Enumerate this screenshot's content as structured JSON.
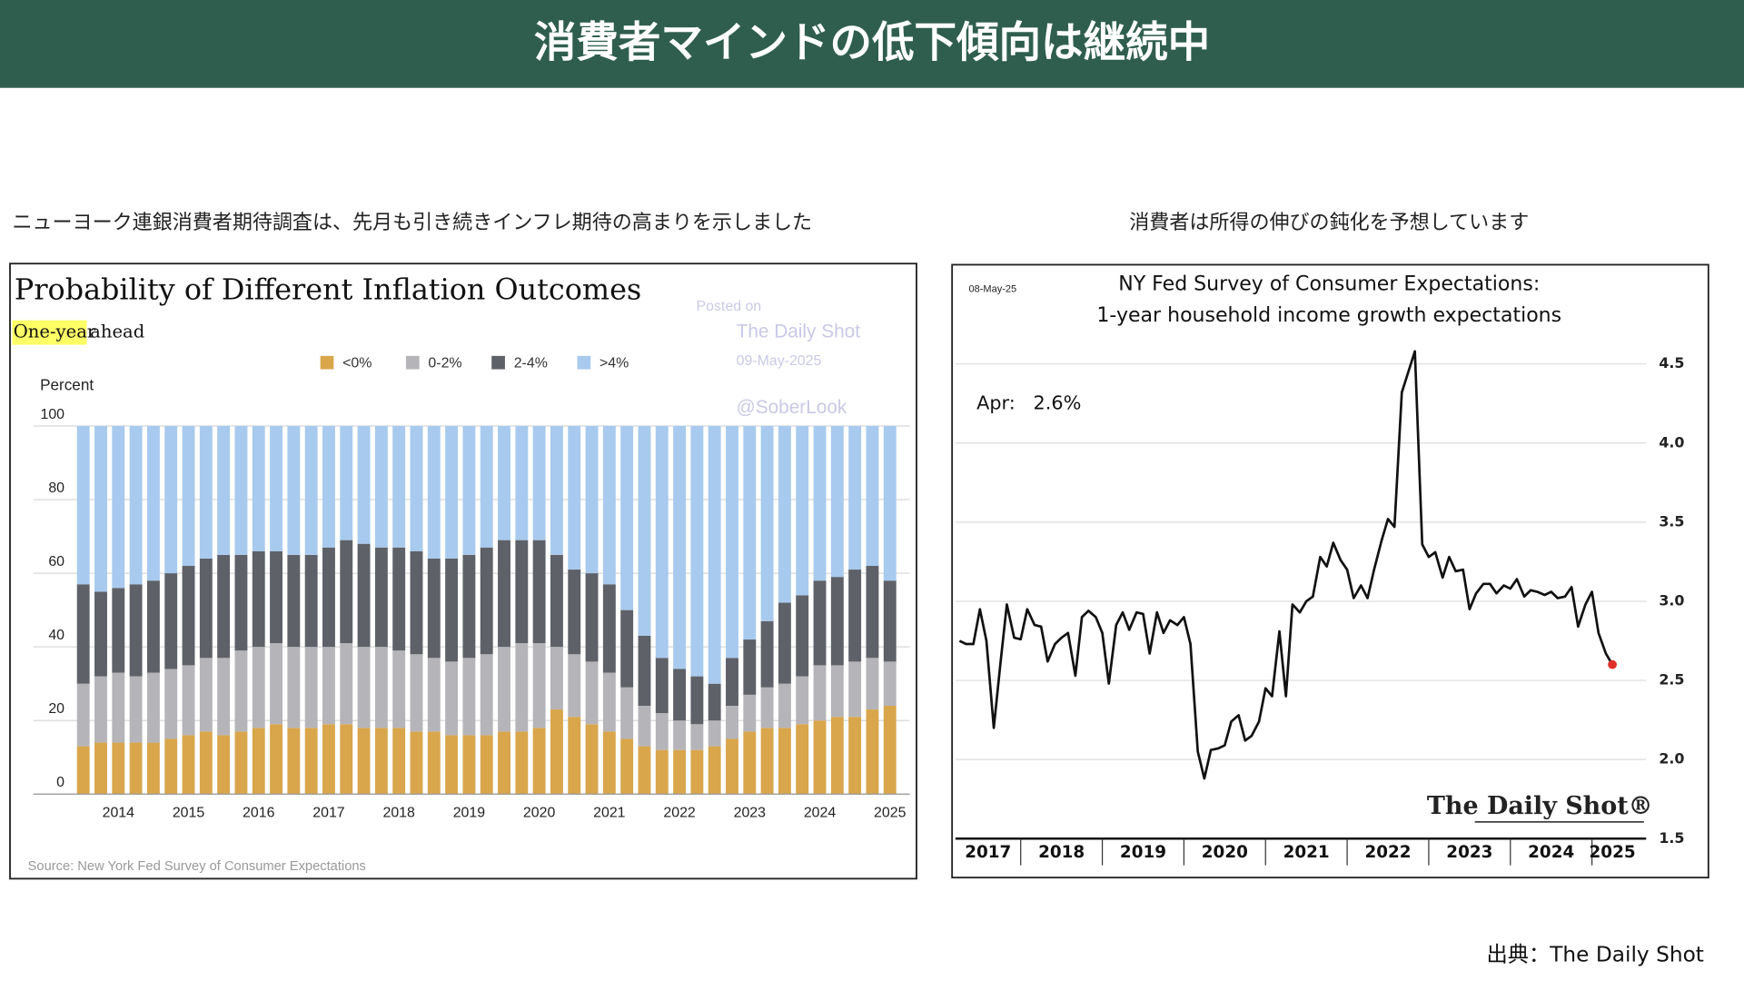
{
  "header": {
    "title": "消費者マインドの低下傾向は継続中"
  },
  "captions": [
    "ニューヨーク連銀消費者期待調査は、先月も引き続きインフレ期待の高まりを示しました",
    "消費者は所得の伸びの鈍化を予想しています"
  ],
  "source": "出典：The Daily Shot",
  "chart_data": [
    {
      "type": "stacked_bar",
      "title": "Probability of Different Inflation Outcomes",
      "subtitle_highlight": "One-year",
      "subtitle": "ahead",
      "y_label": "Percent",
      "watermark": [
        "Posted on",
        "The Daily Shot",
        "09-May-2025",
        "@SoberLook"
      ],
      "source": "Source: New York Fed Survey of Consumer Expectations",
      "categories": [
        null,
        null,
        "2014",
        null,
        null,
        null,
        "2015",
        null,
        null,
        null,
        "2016",
        null,
        null,
        null,
        "2017",
        null,
        null,
        null,
        "2018",
        null,
        null,
        null,
        "2019",
        null,
        null,
        null,
        "2020",
        null,
        null,
        null,
        "2021",
        null,
        null,
        null,
        "2022",
        null,
        null,
        null,
        "2023",
        null,
        null,
        null,
        "2024",
        null,
        null,
        null,
        "2025"
      ],
      "series": [
        {
          "name": "<0%",
          "color": "#d9a64c",
          "values": [
            13,
            14,
            14,
            14,
            14,
            15,
            16,
            17,
            16,
            17,
            18,
            19,
            18,
            18,
            19,
            19,
            18,
            18,
            18,
            17,
            17,
            16,
            16,
            16,
            17,
            17,
            18,
            23,
            21,
            19,
            17,
            15,
            13,
            12,
            12,
            12,
            13,
            15,
            17,
            18,
            18,
            19,
            20,
            21,
            21,
            23,
            24
          ]
        },
        {
          "name": "0-2%",
          "color": "#b5b5b9",
          "values": [
            17,
            18,
            19,
            18,
            19,
            19,
            19,
            20,
            21,
            22,
            22,
            22,
            22,
            22,
            21,
            22,
            22,
            22,
            21,
            21,
            20,
            20,
            21,
            22,
            23,
            24,
            23,
            17,
            17,
            17,
            16,
            14,
            11,
            10,
            8,
            7,
            7,
            9,
            10,
            11,
            12,
            13,
            15,
            14,
            15,
            14,
            12
          ]
        },
        {
          "name": "2-4%",
          "color": "#5e6167",
          "values": [
            27,
            23,
            23,
            25,
            25,
            26,
            27,
            27,
            28,
            26,
            26,
            25,
            25,
            25,
            27,
            28,
            28,
            27,
            28,
            28,
            27,
            28,
            28,
            29,
            29,
            28,
            28,
            25,
            23,
            24,
            24,
            21,
            19,
            15,
            14,
            13,
            10,
            13,
            15,
            18,
            22,
            22,
            23,
            24,
            25,
            25,
            22
          ]
        },
        {
          "name": ">4%",
          "color": "#a8caee",
          "values": [
            43,
            45,
            44,
            43,
            42,
            40,
            38,
            36,
            35,
            35,
            34,
            34,
            35,
            35,
            33,
            31,
            32,
            33,
            33,
            34,
            36,
            36,
            35,
            33,
            31,
            31,
            31,
            35,
            39,
            40,
            43,
            50,
            57,
            63,
            66,
            68,
            70,
            63,
            58,
            53,
            48,
            46,
            42,
            41,
            39,
            38,
            42
          ]
        }
      ],
      "ylim": [
        0,
        100
      ],
      "yticks": [
        0,
        20,
        40,
        60,
        80,
        100
      ],
      "grid": true,
      "legend": "top"
    },
    {
      "type": "line",
      "date": "08-May-25",
      "title": "NY Fed Survey of Consumer Expectations:",
      "subtitle": "1-year household income growth expectations",
      "annotation": "Apr:   2.6%",
      "logo": "The Daily Shot®",
      "color": "#111111",
      "marker_color": "#e0302a",
      "x": [
        2017.25,
        2017.33,
        2017.42,
        2017.5,
        2017.58,
        2017.67,
        2017.75,
        2017.83,
        2017.92,
        2018,
        2018.08,
        2018.17,
        2018.25,
        2018.33,
        2018.42,
        2018.5,
        2018.58,
        2018.67,
        2018.75,
        2018.83,
        2018.92,
        2019,
        2019.08,
        2019.17,
        2019.25,
        2019.33,
        2019.42,
        2019.5,
        2019.58,
        2019.67,
        2019.75,
        2019.83,
        2019.92,
        2020,
        2020.08,
        2020.17,
        2020.25,
        2020.33,
        2020.42,
        2020.5,
        2020.58,
        2020.67,
        2020.75,
        2020.83,
        2020.92,
        2021,
        2021.08,
        2021.17,
        2021.25,
        2021.33,
        2021.42,
        2021.5,
        2021.58,
        2021.67,
        2021.75,
        2021.83,
        2021.92,
        2022,
        2022.08,
        2022.17,
        2022.25,
        2022.33,
        2022.42,
        2022.5,
        2022.58,
        2022.67,
        2022.75,
        2022.83,
        2022.92,
        2023,
        2023.08,
        2023.17,
        2023.25,
        2023.33,
        2023.42,
        2023.5,
        2023.58,
        2023.67,
        2023.75,
        2023.83,
        2023.92,
        2024,
        2024.08,
        2024.17,
        2024.25,
        2024.33,
        2024.42,
        2024.5,
        2024.58,
        2024.67,
        2024.75,
        2024.83,
        2024.92,
        2025,
        2025.08,
        2025.17,
        2025.25
      ],
      "values": [
        2.75,
        2.73,
        2.73,
        2.95,
        2.75,
        2.2,
        2.6,
        2.98,
        2.77,
        2.76,
        2.95,
        2.85,
        2.84,
        2.62,
        2.73,
        2.77,
        2.8,
        2.53,
        2.9,
        2.94,
        2.9,
        2.8,
        2.48,
        2.85,
        2.93,
        2.82,
        2.93,
        2.92,
        2.67,
        2.93,
        2.8,
        2.88,
        2.85,
        2.9,
        2.73,
        2.05,
        1.88,
        2.06,
        2.07,
        2.09,
        2.24,
        2.28,
        2.12,
        2.15,
        2.24,
        2.45,
        2.4,
        2.81,
        2.4,
        2.98,
        2.93,
        3.0,
        3.03,
        3.28,
        3.22,
        3.37,
        3.26,
        3.2,
        3.02,
        3.1,
        3.02,
        3.2,
        3.38,
        3.52,
        3.47,
        4.32,
        4.45,
        4.58,
        3.36,
        3.28,
        3.31,
        3.15,
        3.28,
        3.19,
        3.2,
        2.95,
        3.05,
        3.11,
        3.11,
        3.05,
        3.1,
        3.08,
        3.14,
        3.03,
        3.07,
        3.06,
        3.04,
        3.06,
        3.02,
        3.03,
        3.09,
        2.84,
        2.98,
        3.06,
        2.8,
        2.67,
        2.6
      ],
      "xlim": [
        2017.2,
        2025.5
      ],
      "xticks": [
        2018,
        2019,
        2020,
        2021,
        2022,
        2023,
        2024,
        2025
      ],
      "year_labels": [
        2017,
        2018,
        2019,
        2020,
        2021,
        2022,
        2023,
        2024,
        2025
      ],
      "ylim": [
        1.5,
        4.6
      ],
      "yticks": [
        {
          "value": 1.5,
          "label": "1.5"
        },
        {
          "value": 2,
          "label": "2.0"
        },
        {
          "value": 2.5,
          "label": "2.5"
        },
        {
          "value": 3,
          "label": "3.0"
        },
        {
          "value": 3.5,
          "label": "3.5"
        },
        {
          "value": 4,
          "label": "4.0"
        },
        {
          "value": 4.5,
          "label": "4.5"
        }
      ],
      "grid": true,
      "y_axis_side": "right"
    }
  ]
}
